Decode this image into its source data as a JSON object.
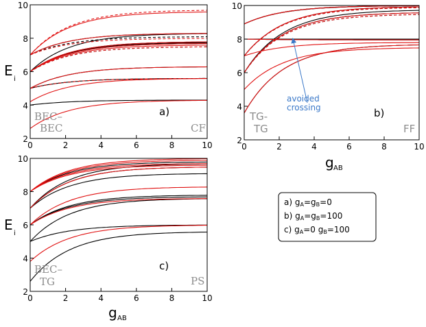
{
  "chart_data": [
    {
      "panel": "a",
      "type": "line",
      "panel_label": "a)",
      "corner_left": [
        "BEC–",
        "BEC"
      ],
      "corner_right": "CF",
      "ylabel": "E",
      "ylabel_sub": "i",
      "xlabel": "",
      "xlabel_sub": "",
      "xlim": [
        0,
        10
      ],
      "ylim": [
        2,
        10
      ],
      "xticks": [
        0,
        2,
        4,
        6,
        8,
        10
      ],
      "yticks": [
        2,
        4,
        6,
        8,
        10
      ],
      "black_solid": [
        [
          4,
          4.3
        ],
        [
          5,
          5.6
        ],
        [
          5,
          6.3
        ],
        [
          6,
          7.7
        ],
        [
          6,
          7.75
        ],
        [
          6,
          7.8
        ],
        [
          6,
          8.3
        ],
        [
          7,
          8.3
        ]
      ],
      "black_dashed": [
        [
          5,
          5.6
        ],
        [
          6,
          7.5
        ],
        [
          7,
          8.1
        ]
      ],
      "red_solid": [
        [
          2.6,
          4.3
        ],
        [
          4.2,
          5.6
        ],
        [
          5,
          6.3
        ],
        [
          6,
          7.6
        ],
        [
          6,
          7.7
        ],
        [
          6,
          7.8
        ],
        [
          7,
          8.3
        ],
        [
          7,
          9.6
        ]
      ],
      "red_dashed": [
        [
          5,
          5.6
        ],
        [
          6,
          7.5
        ],
        [
          7,
          8.0
        ],
        [
          7,
          9.7
        ]
      ]
    },
    {
      "panel": "b",
      "type": "line",
      "panel_label": "b)",
      "corner_left": [
        "TG-",
        "TG"
      ],
      "corner_right": "FF",
      "annotation": [
        "avoided",
        "crossing"
      ],
      "xlabel": "g",
      "xlabel_sub": "AB",
      "ylabel": "",
      "xlim": [
        0,
        10
      ],
      "ylim": [
        2,
        10
      ],
      "xticks": [
        0,
        2,
        4,
        6,
        8,
        10
      ],
      "yticks": [
        2,
        4,
        6,
        8,
        10
      ],
      "black_solid": [
        [
          3.6,
          7.7
        ],
        [
          6,
          9.6
        ],
        [
          6,
          9.75
        ],
        [
          7,
          9.95
        ],
        [
          8,
          7.95
        ],
        [
          8,
          8.0
        ],
        [
          8.9,
          9.99
        ],
        [
          8.9,
          10.0
        ]
      ],
      "black_dashed": [
        [
          6,
          9.5
        ],
        [
          7,
          9.9
        ],
        [
          8.9,
          10.0
        ]
      ],
      "red_solid": [
        [
          3.6,
          7.7
        ],
        [
          5,
          7.5
        ],
        [
          6,
          9.6
        ],
        [
          7,
          7.8
        ],
        [
          7,
          9.95
        ],
        [
          8,
          7.95
        ],
        [
          8.9,
          10.0
        ]
      ],
      "red_dashed": [
        [
          6,
          9.5
        ],
        [
          7,
          9.9
        ],
        [
          8.9,
          10.0
        ]
      ]
    },
    {
      "panel": "c",
      "type": "line",
      "panel_label": "c)",
      "corner_left": [
        "BEC–",
        "TG"
      ],
      "corner_right": "PS",
      "ylabel": "E",
      "ylabel_sub": "i",
      "xlabel": "g",
      "xlabel_sub": "AB",
      "xlim": [
        0,
        10
      ],
      "ylim": [
        2,
        10
      ],
      "xticks": [
        0,
        2,
        4,
        6,
        8,
        10
      ],
      "yticks": [
        2,
        4,
        6,
        8,
        10
      ],
      "black_solid": [
        [
          2.6,
          5.6
        ],
        [
          5,
          6.0
        ],
        [
          5,
          7.6
        ],
        [
          6,
          7.7
        ],
        [
          6,
          7.8
        ],
        [
          7,
          9.1
        ],
        [
          7,
          9.5
        ],
        [
          7,
          9.7
        ],
        [
          8,
          9.8
        ]
      ],
      "red_solid": [
        [
          3.8,
          6.0
        ],
        [
          6,
          7.6
        ],
        [
          6,
          8.3
        ],
        [
          7,
          9.5
        ],
        [
          8,
          9.6
        ],
        [
          8,
          9.7
        ],
        [
          8,
          9.9
        ],
        [
          8,
          10.0
        ]
      ]
    }
  ],
  "legend": [
    {
      "prefix": "a) ",
      "t1": "g",
      "s1": "A",
      "mid": "=",
      "t2": "g",
      "s2": "B",
      "tail": "=0"
    },
    {
      "prefix": "b) ",
      "t1": "g",
      "s1": "A",
      "mid": "=",
      "t2": "g",
      "s2": "B",
      "tail": "=100"
    },
    {
      "prefix": "c) ",
      "t1": "g",
      "s1": "A",
      "mid": "=0    ",
      "t2": "g",
      "s2": "B",
      "tail": "=100"
    }
  ],
  "colors": {
    "red": "#e01010",
    "black": "#000000",
    "corner": "#8c8c8c",
    "annotation": "#3a78c8"
  }
}
